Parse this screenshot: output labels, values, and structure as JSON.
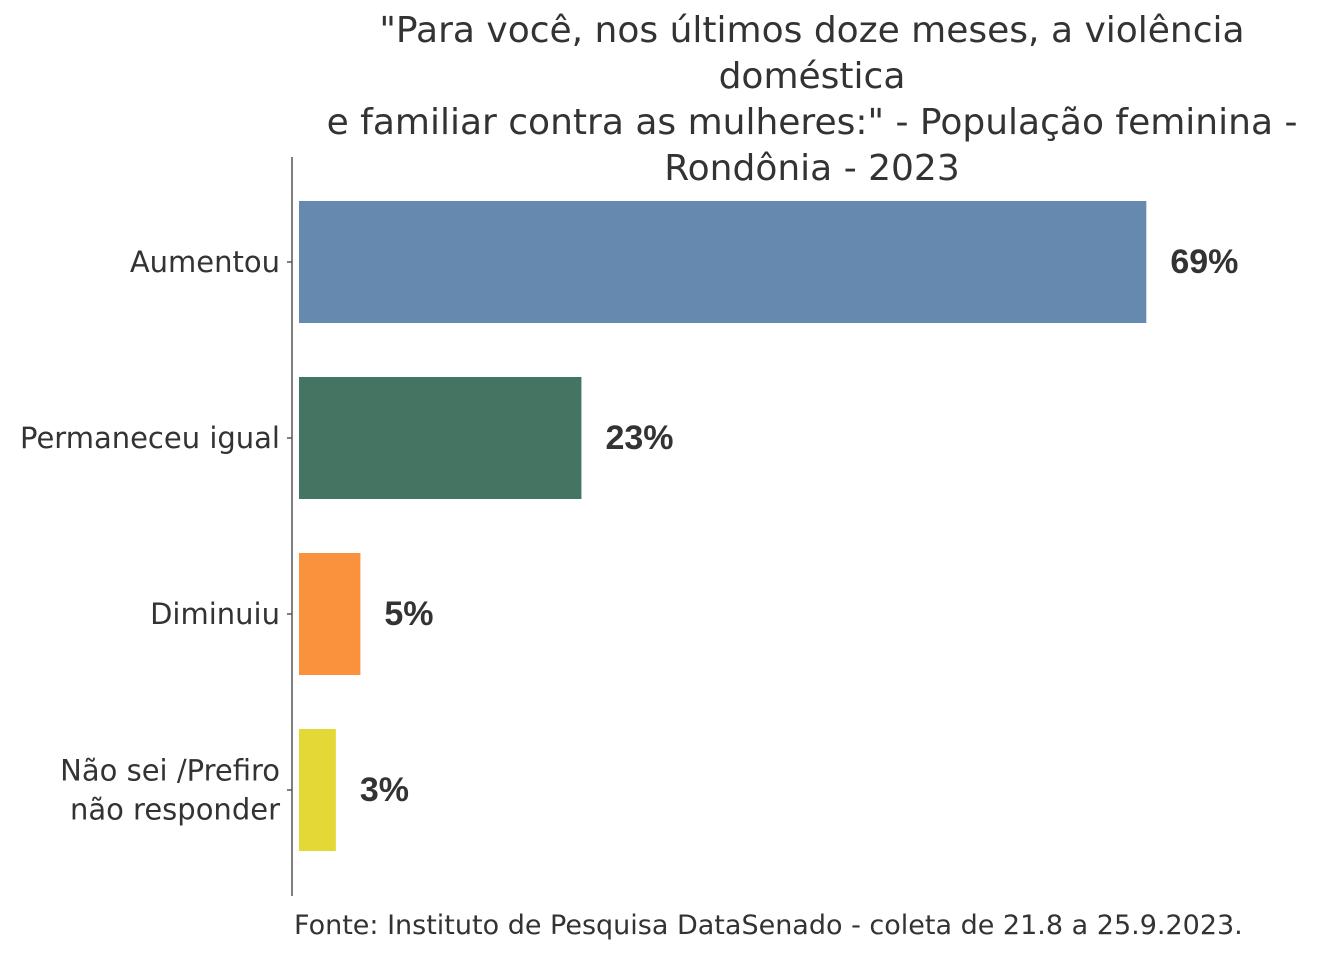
{
  "chart_data": {
    "type": "bar",
    "orientation": "horizontal",
    "title_lines": [
      "\"Para você, nos últimos doze meses, a violência doméstica",
      "e familiar contra as mulheres:\" - População feminina -",
      "Rondônia - 2023"
    ],
    "categories": [
      [
        "Aumentou"
      ],
      [
        "Permaneceu igual"
      ],
      [
        "Diminuiu"
      ],
      [
        "Não sei /Prefiro",
        "não responder"
      ]
    ],
    "values": [
      69,
      23,
      5,
      3
    ],
    "value_labels": [
      "69%",
      "23%",
      "5%",
      "3%"
    ],
    "colors": [
      "#6689b0",
      "#447562",
      "#f9913d",
      "#e3d836"
    ],
    "unit": "%",
    "xlim": [
      0,
      72
    ],
    "grid": false,
    "legend": "none"
  },
  "source": "Fonte: Instituto de Pesquisa DataSenado - coleta de 21.8 a 25.9.2023."
}
